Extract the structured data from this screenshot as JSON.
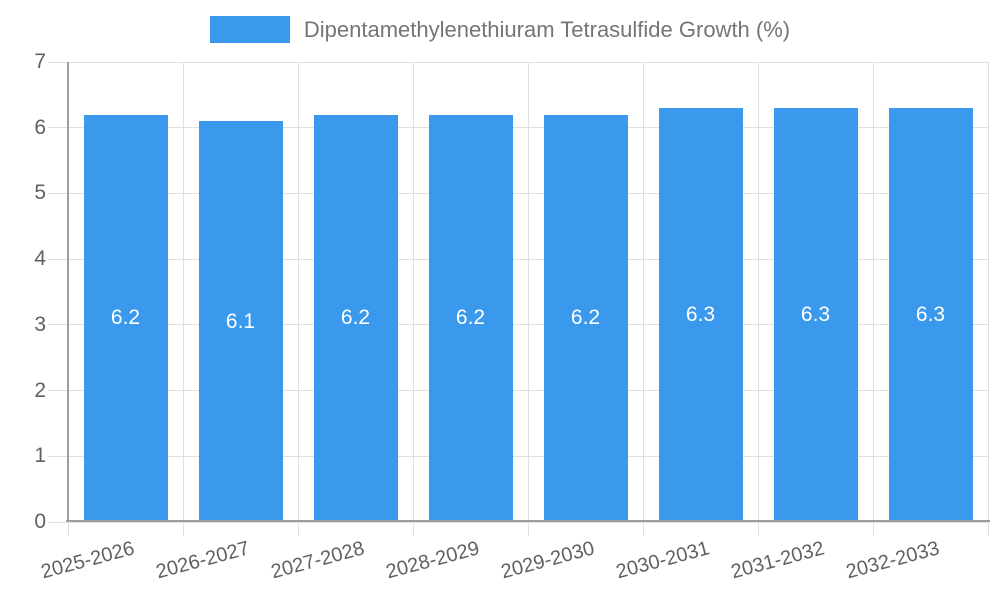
{
  "chart_data": {
    "type": "bar",
    "title": "Dipentamethylenethiuram Tetrasulfide Growth (%)",
    "legend": {
      "label": "Dipentamethylenethiuram Tetrasulfide Growth (%)",
      "position": "top"
    },
    "categories": [
      "2025-2026",
      "2026-2027",
      "2027-2028",
      "2028-2029",
      "2029-2030",
      "2030-2031",
      "2031-2032",
      "2032-2033"
    ],
    "values": [
      6.2,
      6.1,
      6.2,
      6.2,
      6.2,
      6.3,
      6.3,
      6.3
    ],
    "value_labels": [
      "6.2",
      "6.1",
      "6.2",
      "6.2",
      "6.2",
      "6.3",
      "6.3",
      "6.3"
    ],
    "xlabel": "",
    "ylabel": "",
    "ylim": [
      0,
      7
    ],
    "yticks": [
      0,
      1,
      2,
      3,
      4,
      5,
      6,
      7
    ],
    "grid": true,
    "x_label_rotation_deg": -15,
    "colors": {
      "bar": "#3A99EC",
      "grid": "#e0e0e0",
      "axis": "#9e9e9e",
      "tick_text": "#616161",
      "legend_text": "#757575",
      "value_text": "#ffffff"
    }
  }
}
